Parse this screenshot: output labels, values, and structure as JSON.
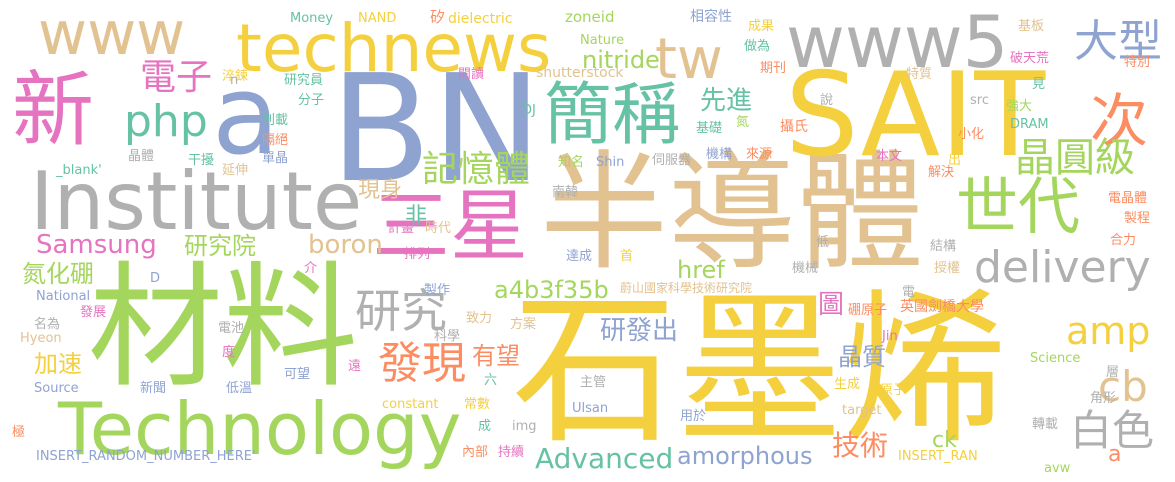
{
  "words": [
    {
      "text": "石墨烯",
      "color": "#f4d03f"
    },
    {
      "text": "半導體",
      "color": "#e2c290"
    },
    {
      "text": "材料",
      "color": "#a4d65e"
    },
    {
      "text": "BN",
      "color": "#8fa3d1"
    },
    {
      "text": "SAIT",
      "color": "#f4d03f"
    },
    {
      "text": "Institute",
      "color": "#b0b0b0"
    },
    {
      "text": "Technology",
      "color": "#a4d65e"
    },
    {
      "text": "三星",
      "color": "#e673c0"
    },
    {
      "text": "technews",
      "color": "#f4d03f"
    },
    {
      "text": "www5",
      "color": "#b0b0b0"
    },
    {
      "text": "www",
      "color": "#e2c290"
    },
    {
      "text": "新",
      "color": "#e673c0"
    },
    {
      "text": "a",
      "color": "#8fa3d1"
    },
    {
      "text": "簡稱",
      "color": "#66c2a5"
    },
    {
      "text": "世代",
      "color": "#a4d65e"
    },
    {
      "text": "tw",
      "color": "#e2c290"
    },
    {
      "text": "次",
      "color": "#fc8d62"
    },
    {
      "text": "大型",
      "color": "#8fa3d1"
    },
    {
      "text": "電子",
      "color": "#e673c0"
    },
    {
      "text": "php",
      "color": "#66c2a5"
    },
    {
      "text": "晶圓級",
      "color": "#a4d65e"
    },
    {
      "text": "delivery",
      "color": "#b0b0b0"
    },
    {
      "text": "amp",
      "color": "#f4d03f"
    },
    {
      "text": "記憶體",
      "color": "#a4d65e"
    },
    {
      "text": "研究",
      "color": "#b0b0b0"
    },
    {
      "text": "發現",
      "color": "#fc8d62"
    },
    {
      "text": "白色",
      "color": "#b0b0b0"
    },
    {
      "text": "cb",
      "color": "#e2c290"
    },
    {
      "text": "Advanced",
      "color": "#66c2a5"
    },
    {
      "text": "Samsung",
      "color": "#e673c0"
    },
    {
      "text": "a4b3f35b",
      "color": "#a4d65e"
    },
    {
      "text": "研究院",
      "color": "#a4d65e"
    },
    {
      "text": "boron",
      "color": "#e2c290"
    },
    {
      "text": "氮化硼",
      "color": "#a4d65e"
    },
    {
      "text": "href",
      "color": "#a4d65e"
    },
    {
      "text": "技術",
      "color": "#fc8d62"
    },
    {
      "text": "amorphous",
      "color": "#8fa3d1"
    },
    {
      "text": "先進",
      "color": "#66c2a5"
    },
    {
      "text": "nitride",
      "color": "#a4d65e"
    },
    {
      "text": "研發出",
      "color": "#8fa3d1"
    },
    {
      "text": "晶質",
      "color": "#8fa3d1"
    },
    {
      "text": "有望",
      "color": "#fc8d62"
    },
    {
      "text": "加速",
      "color": "#f4d03f"
    },
    {
      "text": "現身",
      "color": "#e2c290"
    },
    {
      "text": "非",
      "color": "#66c2a5"
    },
    {
      "text": "ck",
      "color": "#a4d65e"
    },
    {
      "text": "a",
      "color": "#fc8d62"
    },
    {
      "text": "圖",
      "color": "#e673c0"
    },
    {
      "text": "Money",
      "color": "#66c2a5"
    },
    {
      "text": "NAND",
      "color": "#f4d03f"
    },
    {
      "text": "矽",
      "color": "#fc8d62"
    },
    {
      "text": "dielectric",
      "color": "#f4d03f"
    },
    {
      "text": "zoneid",
      "color": "#a4d65e"
    },
    {
      "text": "相容性",
      "color": "#8fa3d1"
    },
    {
      "text": "成果",
      "color": "#f4d03f"
    },
    {
      "text": "做為",
      "color": "#66c2a5"
    },
    {
      "text": "期刊",
      "color": "#fc8d62"
    },
    {
      "text": "Nature",
      "color": "#a4d65e"
    },
    {
      "text": "shutterstock",
      "color": "#e2c290"
    },
    {
      "text": "基板",
      "color": "#e2c290"
    },
    {
      "text": "破天荒",
      "color": "#e673c0"
    },
    {
      "text": "特別",
      "color": "#fc8d62"
    },
    {
      "text": "特質",
      "color": "#e2c290"
    },
    {
      "text": "見",
      "color": "#66c2a5"
    },
    {
      "text": "強大",
      "color": "#a4d65e"
    },
    {
      "text": "小化",
      "color": "#fc8d62"
    },
    {
      "text": "說",
      "color": "#b0b0b0"
    },
    {
      "text": "src",
      "color": "#b0b0b0"
    },
    {
      "text": "DRAM",
      "color": "#66c2a5"
    },
    {
      "text": "攝氏",
      "color": "#fc8d62"
    },
    {
      "text": "本文",
      "color": "#e673c0"
    },
    {
      "text": "出",
      "color": "#f4d03f"
    },
    {
      "text": "解決",
      "color": "#fc8d62"
    },
    {
      "text": "電晶體",
      "color": "#fc8d62"
    },
    {
      "text": "製程",
      "color": "#fc8d62"
    },
    {
      "text": "合力",
      "color": "#fc8d62"
    },
    {
      "text": "結構",
      "color": "#b0b0b0"
    },
    {
      "text": "授權",
      "color": "#e2c290"
    },
    {
      "text": "英國劍橋大學",
      "color": "#fc8d62"
    },
    {
      "text": "硼原子",
      "color": "#fc8d62"
    },
    {
      "text": "Jin",
      "color": "#e673c0"
    },
    {
      "text": "Science",
      "color": "#a4d65e"
    },
    {
      "text": "層",
      "color": "#b0b0b0"
    },
    {
      "text": "角形",
      "color": "#b0b0b0"
    },
    {
      "text": "原子",
      "color": "#f4d03f"
    },
    {
      "text": "生成",
      "color": "#f4d03f"
    },
    {
      "text": "target",
      "color": "#e2c290"
    },
    {
      "text": "轉載",
      "color": "#b0b0b0"
    },
    {
      "text": "INSERT_RAN",
      "color": "#f4d03f"
    },
    {
      "text": "avw",
      "color": "#a4d65e"
    },
    {
      "text": "蔚山國家科學技術研究院",
      "color": "#e2c290"
    },
    {
      "text": "機械",
      "color": "#b0b0b0"
    },
    {
      "text": "電",
      "color": "#b0b0b0"
    },
    {
      "text": "低",
      "color": "#b0b0b0"
    },
    {
      "text": "達成",
      "color": "#8fa3d1"
    },
    {
      "text": "首",
      "color": "#f4d03f"
    },
    {
      "text": "南韓",
      "color": "#b0b0b0"
    },
    {
      "text": "知名",
      "color": "#a4d65e"
    },
    {
      "text": "Shin",
      "color": "#8fa3d1"
    },
    {
      "text": "伺服器",
      "color": "#b0b0b0"
    },
    {
      "text": "機構",
      "color": "#8fa3d1"
    },
    {
      "text": "來源",
      "color": "#fc8d62"
    },
    {
      "text": "基礎",
      "color": "#66c2a5"
    },
    {
      "text": "氮",
      "color": "#a4d65e"
    },
    {
      "text": "DJ",
      "color": "#66c2a5"
    },
    {
      "text": "閱讀",
      "color": "#e673c0"
    },
    {
      "text": "研究員",
      "color": "#66c2a5"
    },
    {
      "text": "分子",
      "color": "#66c2a5"
    },
    {
      "text": "刊載",
      "color": "#66c2a5"
    },
    {
      "text": "隔絕",
      "color": "#fc8d62"
    },
    {
      "text": "單晶",
      "color": "#8fa3d1"
    },
    {
      "text": "淬鍊",
      "color": "#f4d03f"
    },
    {
      "text": "n",
      "color": "#b0b0b0"
    },
    {
      "text": "晶體",
      "color": "#b0b0b0"
    },
    {
      "text": "干擾",
      "color": "#66c2a5"
    },
    {
      "text": "延伸",
      "color": "#e2c290"
    },
    {
      "text": "_blank'",
      "color": "#66c2a5"
    },
    {
      "text": "計畫",
      "color": "#e673c0"
    },
    {
      "text": "時代",
      "color": "#e2c290"
    },
    {
      "text": "排列",
      "color": "#e673c0"
    },
    {
      "text": "介",
      "color": "#e673c0"
    },
    {
      "text": "D",
      "color": "#8fa3d1"
    },
    {
      "text": "National",
      "color": "#8fa3d1"
    },
    {
      "text": "名為",
      "color": "#b0b0b0"
    },
    {
      "text": "發展",
      "color": "#e673c0"
    },
    {
      "text": "電池",
      "color": "#b0b0b0"
    },
    {
      "text": "Hyeon",
      "color": "#e2c290"
    },
    {
      "text": "度",
      "color": "#e673c0"
    },
    {
      "text": "遠",
      "color": "#e673c0"
    },
    {
      "text": "可望",
      "color": "#8fa3d1"
    },
    {
      "text": "低溫",
      "color": "#8fa3d1"
    },
    {
      "text": "新聞",
      "color": "#8fa3d1"
    },
    {
      "text": "Source",
      "color": "#8fa3d1"
    },
    {
      "text": "極",
      "color": "#fc8d62"
    },
    {
      "text": "INSERT_RANDOM_NUMBER_HERE'",
      "color": "#8fa3d1"
    },
    {
      "text": "constant",
      "color": "#f4d03f"
    },
    {
      "text": "常數",
      "color": "#f4d03f"
    },
    {
      "text": "六",
      "color": "#66c2a5"
    },
    {
      "text": "成",
      "color": "#66c2a5"
    },
    {
      "text": "內部",
      "color": "#fc8d62"
    },
    {
      "text": "持續",
      "color": "#e673c0"
    },
    {
      "text": "img",
      "color": "#b0b0b0"
    },
    {
      "text": "Ulsan",
      "color": "#8fa3d1"
    },
    {
      "text": "主管",
      "color": "#b0b0b0"
    },
    {
      "text": "用於",
      "color": "#8fa3d1"
    },
    {
      "text": "製作",
      "color": "#8fa3d1"
    },
    {
      "text": "科學",
      "color": "#b0b0b0"
    },
    {
      "text": "致力",
      "color": "#e2c290"
    },
    {
      "text": "方案",
      "color": "#e2c290"
    }
  ]
}
